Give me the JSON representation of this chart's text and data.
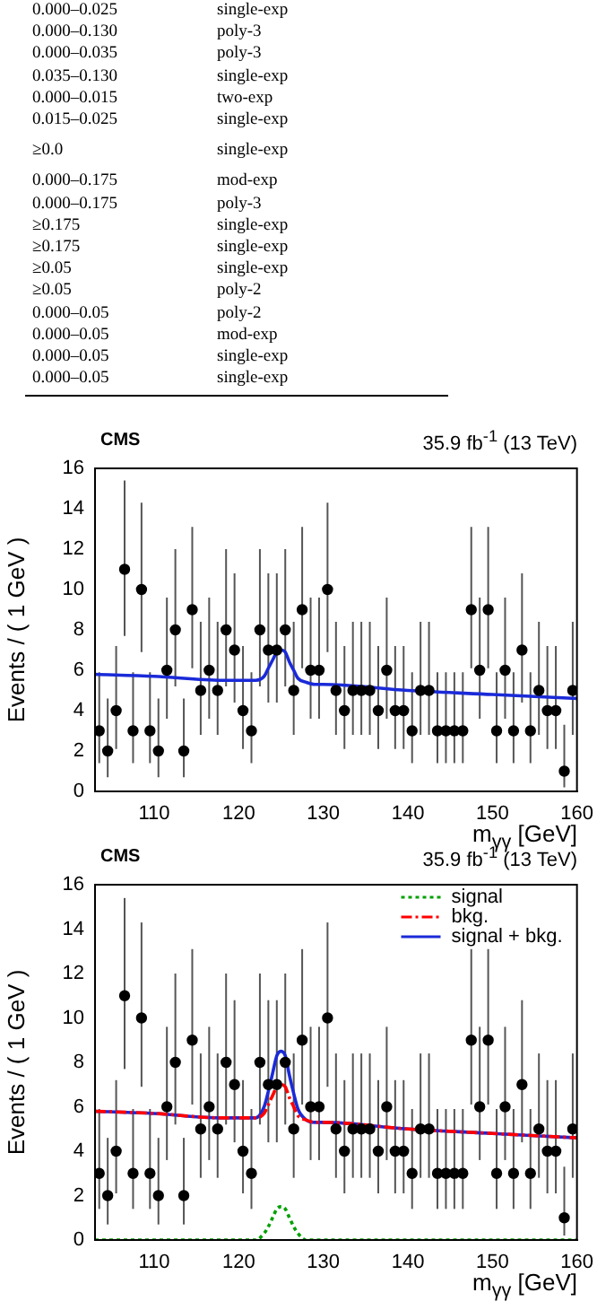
{
  "chart_data": [
    {
      "type": "other",
      "annotations": [
        "0.000–0.025",
        "single-exp",
        "0.000–0.130",
        "poly-3",
        "0.000–0.035",
        "poly-3",
        "0.035–0.130",
        "single-exp",
        "0.000–0.015",
        "two-exp",
        "0.015–0.025",
        "single-exp",
        "≥0.0",
        "single-exp",
        "0.000–0.175",
        "mod-exp",
        "0.000–0.175",
        "poly-3",
        "≥0.175",
        "single-exp",
        "≥0.175",
        "single-exp",
        "≥0.05",
        "single-exp",
        "≥0.05",
        "poly-2",
        "0.000–0.05",
        "poly-2",
        "0.000–0.05",
        "mod-exp",
        "0.000–0.05",
        "single-exp",
        "0.000–0.05",
        "single-exp"
      ]
    },
    {
      "type": "scatter",
      "title": "CMS",
      "subtitle": "35.9 fb$^{-1}$ (13 TeV)",
      "xlabel": "m$_{γγ}$ [GeV]",
      "ylabel": "Events / ( 1 GeV )",
      "xlim": [
        103,
        160
      ],
      "xticks": [
        110,
        120,
        130,
        140,
        150,
        160
      ],
      "ylim": [
        0,
        16
      ],
      "yticks": [
        0,
        2,
        4,
        6,
        8,
        10,
        12,
        14,
        16
      ],
      "series": [
        {
          "type": "scatter",
          "marker": "circle",
          "color": "#000000",
          "x": [
            103.5,
            104.5,
            105.5,
            106.5,
            107.5,
            108.5,
            109.5,
            110.5,
            111.5,
            112.5,
            113.5,
            114.5,
            115.5,
            116.5,
            117.5,
            118.5,
            119.5,
            120.5,
            121.5,
            122.5,
            123.5,
            124.5,
            125.5,
            126.5,
            127.5,
            128.5,
            129.5,
            130.5,
            131.5,
            132.5,
            133.5,
            134.5,
            135.5,
            136.5,
            137.5,
            138.5,
            139.5,
            140.5,
            141.5,
            142.5,
            143.5,
            144.5,
            145.5,
            146.5,
            147.5,
            148.5,
            149.5,
            150.5,
            151.5,
            152.5,
            153.5,
            154.5,
            155.5,
            156.5,
            157.5,
            158.5,
            159.5
          ],
          "values": [
            3,
            2,
            4,
            11,
            3,
            10,
            3,
            2,
            6,
            8,
            2,
            9,
            5,
            6,
            5,
            8,
            7,
            4,
            3,
            8,
            7,
            7,
            8,
            5,
            9,
            6,
            6,
            10,
            5,
            4,
            5,
            5,
            5,
            4,
            6,
            4,
            4,
            3,
            5,
            5,
            3,
            3,
            3,
            3,
            9,
            6,
            9,
            3,
            6,
            3,
            7,
            3,
            5,
            4,
            4,
            1,
            5
          ],
          "errors": [
            [
              1.4,
              5.9
            ],
            [
              0.7,
              4.6
            ],
            [
              2.1,
              7.2
            ],
            [
              7.7,
              15.4
            ],
            [
              1.4,
              5.9
            ],
            [
              6.9,
              14.3
            ],
            [
              1.4,
              5.9
            ],
            [
              0.7,
              4.6
            ],
            [
              3.6,
              9.6
            ],
            [
              5.2,
              12.0
            ],
            [
              0.7,
              4.6
            ],
            [
              6.1,
              13.1
            ],
            [
              2.8,
              8.4
            ],
            [
              3.6,
              9.6
            ],
            [
              2.8,
              8.4
            ],
            [
              5.2,
              12.0
            ],
            [
              4.4,
              10.8
            ],
            [
              2.1,
              7.2
            ],
            [
              1.4,
              5.9
            ],
            [
              5.2,
              12.0
            ],
            [
              4.4,
              10.8
            ],
            [
              4.4,
              10.8
            ],
            [
              5.2,
              12.0
            ],
            [
              2.8,
              8.4
            ],
            [
              6.1,
              13.1
            ],
            [
              3.6,
              9.6
            ],
            [
              3.6,
              9.6
            ],
            [
              6.9,
              14.3
            ],
            [
              2.8,
              8.4
            ],
            [
              2.1,
              7.2
            ],
            [
              2.8,
              8.4
            ],
            [
              2.8,
              8.4
            ],
            [
              2.8,
              8.4
            ],
            [
              2.1,
              7.2
            ],
            [
              3.6,
              9.6
            ],
            [
              2.1,
              7.2
            ],
            [
              2.1,
              7.2
            ],
            [
              1.4,
              5.9
            ],
            [
              2.8,
              8.4
            ],
            [
              2.8,
              8.4
            ],
            [
              1.4,
              5.9
            ],
            [
              1.4,
              5.9
            ],
            [
              1.4,
              5.9
            ],
            [
              1.4,
              5.9
            ],
            [
              6.1,
              13.1
            ],
            [
              3.6,
              9.6
            ],
            [
              6.1,
              13.1
            ],
            [
              1.4,
              5.9
            ],
            [
              3.6,
              9.6
            ],
            [
              1.4,
              5.9
            ],
            [
              4.4,
              10.8
            ],
            [
              1.4,
              5.9
            ],
            [
              2.8,
              8.4
            ],
            [
              2.1,
              7.2
            ],
            [
              2.1,
              7.2
            ],
            [
              0.2,
              3.3
            ],
            [
              2.8,
              8.4
            ]
          ],
          "xerrors": [
            0.5,
            0.5,
            0.5,
            0.5,
            0.5,
            0.5,
            0.5,
            0.5,
            0.5,
            0.5,
            0.5,
            0.5,
            0.5,
            0.5,
            0.5,
            0.5,
            0.5,
            0.5,
            0.5,
            0.5,
            0.5,
            0.5,
            0.5,
            0.5,
            0.5,
            0.5,
            0.5,
            0.5,
            0.5,
            0.5,
            0.5,
            0.5,
            0.5,
            0.5,
            0.5,
            0.5,
            0.5,
            0.5,
            0.5,
            0.5,
            0.5,
            0.5,
            0.5,
            0.5,
            0.5,
            0.5,
            0.5,
            0.5,
            0.5,
            0.5,
            0.5,
            0.5,
            0.5,
            0.5,
            0.5,
            0.5,
            0.5
          ]
        },
        {
          "type": "line",
          "marker": "none",
          "line_style": "solid",
          "color": "#1a2ad8",
          "x": [
            103,
            110,
            118,
            121,
            122,
            123,
            123.5,
            124,
            124.5,
            125,
            125.5,
            126,
            126.5,
            127,
            128,
            129,
            130,
            140,
            150,
            160
          ],
          "values": [
            5.8,
            5.7,
            5.5,
            5.5,
            5.5,
            5.7,
            6.1,
            6.5,
            6.9,
            7.0,
            6.9,
            6.4,
            6.0,
            5.6,
            5.4,
            5.3,
            5.3,
            5.0,
            4.8,
            4.6
          ]
        }
      ]
    },
    {
      "type": "scatter",
      "title": "CMS",
      "subtitle": "35.9 fb$^{-1}$ (13 TeV)",
      "xlabel": "m$_{γγ}$ [GeV]",
      "ylabel": "Events / ( 1 GeV )",
      "xlim": [
        103,
        160
      ],
      "xticks": [
        110,
        120,
        130,
        140,
        150,
        160
      ],
      "ylim": [
        0,
        16
      ],
      "yticks": [
        0,
        2,
        4,
        6,
        8,
        10,
        12,
        14,
        16
      ],
      "legend": "top right",
      "series": [
        {
          "type": "scatter",
          "marker": "circle",
          "color": "#000000",
          "x": [
            103.5,
            104.5,
            105.5,
            106.5,
            107.5,
            108.5,
            109.5,
            110.5,
            111.5,
            112.5,
            113.5,
            114.5,
            115.5,
            116.5,
            117.5,
            118.5,
            119.5,
            120.5,
            121.5,
            122.5,
            123.5,
            124.5,
            125.5,
            126.5,
            127.5,
            128.5,
            129.5,
            130.5,
            131.5,
            132.5,
            133.5,
            134.5,
            135.5,
            136.5,
            137.5,
            138.5,
            139.5,
            140.5,
            141.5,
            142.5,
            143.5,
            144.5,
            145.5,
            146.5,
            147.5,
            148.5,
            149.5,
            150.5,
            151.5,
            152.5,
            153.5,
            154.5,
            155.5,
            156.5,
            157.5,
            158.5,
            159.5
          ],
          "values": [
            3,
            2,
            4,
            11,
            3,
            10,
            3,
            2,
            6,
            8,
            2,
            9,
            5,
            6,
            5,
            8,
            7,
            4,
            3,
            8,
            7,
            7,
            8,
            5,
            9,
            6,
            6,
            10,
            5,
            4,
            5,
            5,
            5,
            4,
            6,
            4,
            4,
            3,
            5,
            5,
            3,
            3,
            3,
            3,
            9,
            6,
            9,
            3,
            6,
            3,
            7,
            3,
            5,
            4,
            4,
            1,
            5
          ],
          "errors": [
            [
              1.4,
              5.9
            ],
            [
              0.7,
              4.6
            ],
            [
              2.1,
              7.2
            ],
            [
              7.7,
              15.4
            ],
            [
              1.4,
              5.9
            ],
            [
              6.9,
              14.3
            ],
            [
              1.4,
              5.9
            ],
            [
              0.7,
              4.6
            ],
            [
              3.6,
              9.6
            ],
            [
              5.2,
              12.0
            ],
            [
              0.7,
              4.6
            ],
            [
              6.1,
              13.1
            ],
            [
              2.8,
              8.4
            ],
            [
              3.6,
              9.6
            ],
            [
              2.8,
              8.4
            ],
            [
              5.2,
              12.0
            ],
            [
              4.4,
              10.8
            ],
            [
              2.1,
              7.2
            ],
            [
              1.4,
              5.9
            ],
            [
              5.2,
              12.0
            ],
            [
              4.4,
              10.8
            ],
            [
              4.4,
              10.8
            ],
            [
              5.2,
              12.0
            ],
            [
              2.8,
              8.4
            ],
            [
              6.1,
              13.1
            ],
            [
              3.6,
              9.6
            ],
            [
              3.6,
              9.6
            ],
            [
              6.9,
              14.3
            ],
            [
              2.8,
              8.4
            ],
            [
              2.1,
              7.2
            ],
            [
              2.8,
              8.4
            ],
            [
              2.8,
              8.4
            ],
            [
              2.8,
              8.4
            ],
            [
              2.1,
              7.2
            ],
            [
              3.6,
              9.6
            ],
            [
              2.1,
              7.2
            ],
            [
              2.1,
              7.2
            ],
            [
              1.4,
              5.9
            ],
            [
              2.8,
              8.4
            ],
            [
              2.8,
              8.4
            ],
            [
              1.4,
              5.9
            ],
            [
              1.4,
              5.9
            ],
            [
              1.4,
              5.9
            ],
            [
              1.4,
              5.9
            ],
            [
              6.1,
              13.1
            ],
            [
              3.6,
              9.6
            ],
            [
              6.1,
              13.1
            ],
            [
              1.4,
              5.9
            ],
            [
              3.6,
              9.6
            ],
            [
              1.4,
              5.9
            ],
            [
              4.4,
              10.8
            ],
            [
              1.4,
              5.9
            ],
            [
              2.8,
              8.4
            ],
            [
              2.1,
              7.2
            ],
            [
              2.1,
              7.2
            ],
            [
              0.2,
              3.3
            ],
            [
              2.8,
              8.4
            ]
          ],
          "xerrors": [
            0.5,
            0.5,
            0.5,
            0.5,
            0.5,
            0.5,
            0.5,
            0.5,
            0.5,
            0.5,
            0.5,
            0.5,
            0.5,
            0.5,
            0.5,
            0.5,
            0.5,
            0.5,
            0.5,
            0.5,
            0.5,
            0.5,
            0.5,
            0.5,
            0.5,
            0.5,
            0.5,
            0.5,
            0.5,
            0.5,
            0.5,
            0.5,
            0.5,
            0.5,
            0.5,
            0.5,
            0.5,
            0.5,
            0.5,
            0.5,
            0.5,
            0.5,
            0.5,
            0.5,
            0.5,
            0.5,
            0.5,
            0.5,
            0.5,
            0.5,
            0.5,
            0.5,
            0.5,
            0.5,
            0.5,
            0.5,
            0.5
          ]
        },
        {
          "type": "line",
          "name": "signal",
          "marker": "none",
          "line_style": "dotted",
          "color": "#00a000",
          "x": [
            103,
            110,
            118,
            121,
            122,
            123,
            123.5,
            124,
            124.5,
            125,
            125.5,
            126,
            126.5,
            127,
            128,
            129,
            130,
            140,
            150,
            160
          ],
          "values": [
            0,
            0,
            0,
            0,
            0,
            0.3,
            0.6,
            1.0,
            1.4,
            1.5,
            1.4,
            1.0,
            0.6,
            0.3,
            0,
            0,
            0,
            0,
            0,
            0
          ]
        },
        {
          "type": "line",
          "name": "bkg.",
          "marker": "none",
          "line_style": "dashed",
          "color": "#ff0000",
          "x": [
            103,
            110,
            118,
            121,
            122,
            123,
            123.5,
            124,
            124.5,
            125,
            125.5,
            126,
            126.5,
            127,
            128,
            129,
            130,
            140,
            150,
            160
          ],
          "values": [
            5.8,
            5.7,
            5.5,
            5.5,
            5.5,
            5.7,
            6.1,
            6.5,
            6.9,
            7.0,
            6.9,
            6.4,
            6.0,
            5.6,
            5.4,
            5.3,
            5.3,
            5.0,
            4.8,
            4.6
          ]
        },
        {
          "type": "line",
          "name": "signal + bkg.",
          "marker": "none",
          "line_style": "solid",
          "color": "#1a2ad8",
          "x": [
            103,
            110,
            118,
            121,
            122,
            123,
            123.5,
            124,
            124.5,
            125,
            125.5,
            126,
            126.5,
            127,
            128,
            129,
            130,
            140,
            150,
            160
          ],
          "values": [
            5.8,
            5.7,
            5.5,
            5.5,
            5.5,
            6.0,
            6.7,
            7.5,
            8.3,
            8.5,
            8.3,
            7.4,
            6.6,
            5.9,
            5.4,
            5.3,
            5.3,
            5.0,
            4.8,
            4.6
          ]
        }
      ]
    }
  ]
}
